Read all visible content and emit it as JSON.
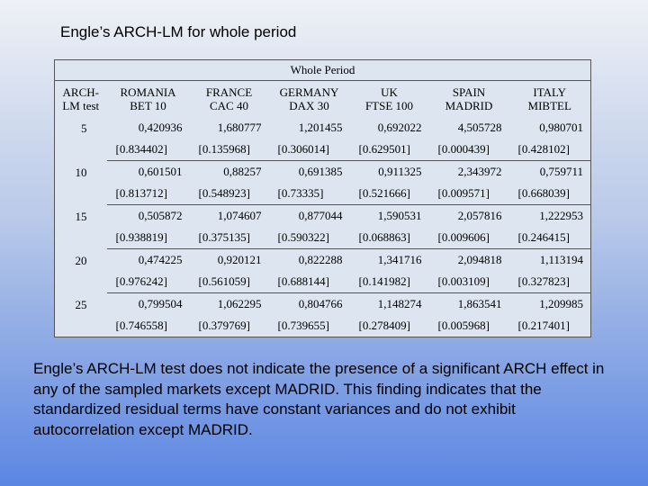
{
  "title": "Engle’s ARCH-LM for whole period",
  "table": {
    "group_header": "Whole Period",
    "columns": [
      "ARCH-\nLM test",
      "ROMANIA\nBET 10",
      "FRANCE\nCAC 40",
      "GERMANY\nDAX 30",
      "UK\nFTSE 100",
      "SPAIN\nMADRID",
      "ITALY\nMIBTEL"
    ],
    "rows": [
      {
        "lag": "5",
        "values": [
          "0,420936",
          "1,680777",
          "1,201455",
          "0,692022",
          "4,505728",
          "0,980701"
        ],
        "pvalues": [
          "[0.834402]",
          "[0.135968]",
          "[0.306014]",
          "[0.629501]",
          "[0.000439]",
          "[0.428102]"
        ]
      },
      {
        "lag": "10",
        "values": [
          "0,601501",
          "0,88257",
          "0,691385",
          "0,911325",
          "2,343972",
          "0,759711"
        ],
        "pvalues": [
          "[0.813712]",
          "[0.548923]",
          "[0.73335]",
          "[0.521666]",
          "[0.009571]",
          "[0.668039]"
        ]
      },
      {
        "lag": "15",
        "values": [
          "0,505872",
          "1,074607",
          "0,877044",
          "1,590531",
          "2,057816",
          "1,222953"
        ],
        "pvalues": [
          "[0.938819]",
          "[0.375135]",
          "[0.590322]",
          "[0.068863]",
          "[0.009606]",
          "[0.246415]"
        ]
      },
      {
        "lag": "20",
        "values": [
          "0,474225",
          "0,920121",
          "0,822288",
          "1,341716",
          "2,094818",
          "1,113194"
        ],
        "pvalues": [
          "[0.976242]",
          "[0.561059]",
          "[0.688144]",
          "[0.141982]",
          "[0.003109]",
          "[0.327823]"
        ]
      },
      {
        "lag": "25",
        "values": [
          "0,799504",
          "1,062295",
          "0,804766",
          "1,148274",
          "1,863541",
          "1,209985"
        ],
        "pvalues": [
          "[0.746558]",
          "[0.379769]",
          "[0.739655]",
          "[0.278409]",
          "[0.005968]",
          "[0.217401]"
        ]
      }
    ]
  },
  "paragraph": "Engle’s ARCH-LM test does not indicate the presence of a significant ARCH effect in any of the sampled markets except MADRID. This finding indicates that the standardized residual terms have constant variances and do not exhibit autocorrelation except MADRID."
}
